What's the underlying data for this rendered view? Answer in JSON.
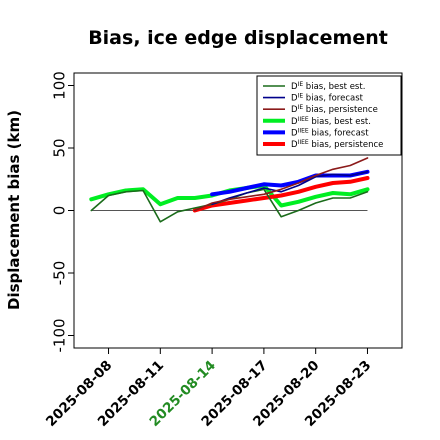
{
  "chart_data": {
    "type": "line",
    "title": "Bias, ice edge displacement",
    "ylabel": "Displacement bias (km)",
    "xlabel": "",
    "ylim": [
      -110,
      110
    ],
    "yticks": [
      -100,
      -50,
      0,
      50,
      100
    ],
    "xlim": [
      "2025-08-06",
      "2025-08-25"
    ],
    "xticks": [
      "2025-08-08",
      "2025-08-11",
      "2025-08-14",
      "2025-08-17",
      "2025-08-20",
      "2025-08-23"
    ],
    "highlight_tick": "2025-08-14",
    "highlight_color": "#228b22",
    "reference_line": 0,
    "grid": false,
    "legend_position": "top-right",
    "series": [
      {
        "name": "D^IE bias, best est.",
        "color": "#1a6b1a",
        "style": "thin",
        "x": [
          "2025-08-07",
          "2025-08-08",
          "2025-08-09",
          "2025-08-10",
          "2025-08-11",
          "2025-08-12",
          "2025-08-13",
          "2025-08-14",
          "2025-08-15",
          "2025-08-16",
          "2025-08-17",
          "2025-08-18",
          "2025-08-19",
          "2025-08-20",
          "2025-08-21",
          "2025-08-22",
          "2025-08-23"
        ],
        "y": [
          0,
          12,
          15,
          16,
          -9,
          -1,
          2,
          5,
          9,
          14,
          17,
          -5,
          0,
          6,
          10,
          10,
          15
        ]
      },
      {
        "name": "D^IE bias, forecast",
        "color": "#00008b",
        "style": "thin",
        "x": [
          "2025-08-14",
          "2025-08-15",
          "2025-08-16",
          "2025-08-17",
          "2025-08-18",
          "2025-08-19",
          "2025-08-20",
          "2025-08-21",
          "2025-08-22",
          "2025-08-23"
        ],
        "y": [
          5,
          10,
          14,
          18,
          15,
          20,
          27,
          29,
          28,
          31
        ]
      },
      {
        "name": "D^IE bias, persistence",
        "color": "#8b1a1a",
        "style": "thin",
        "x": [
          "2025-08-13",
          "2025-08-14",
          "2025-08-15",
          "2025-08-16",
          "2025-08-17",
          "2025-08-18",
          "2025-08-19",
          "2025-08-20",
          "2025-08-21",
          "2025-08-22",
          "2025-08-23"
        ],
        "y": [
          0,
          6,
          9,
          11,
          13,
          17,
          22,
          28,
          33,
          36,
          42
        ]
      },
      {
        "name": "D^IIEE bias, best est.",
        "color": "#00ee22",
        "style": "thick",
        "x": [
          "2025-08-07",
          "2025-08-08",
          "2025-08-09",
          "2025-08-10",
          "2025-08-11",
          "2025-08-12",
          "2025-08-13",
          "2025-08-14",
          "2025-08-15",
          "2025-08-16",
          "2025-08-17",
          "2025-08-18",
          "2025-08-19",
          "2025-08-20",
          "2025-08-21",
          "2025-08-22",
          "2025-08-23"
        ],
        "y": [
          9,
          13,
          16,
          17,
          5,
          10,
          10,
          12,
          16,
          18,
          20,
          4,
          7,
          11,
          14,
          13,
          17
        ]
      },
      {
        "name": "D^IIEE bias, forecast",
        "color": "#0000ff",
        "style": "thick",
        "x": [
          "2025-08-14",
          "2025-08-15",
          "2025-08-16",
          "2025-08-17",
          "2025-08-18",
          "2025-08-19",
          "2025-08-20",
          "2025-08-21",
          "2025-08-22",
          "2025-08-23"
        ],
        "y": [
          13,
          15,
          18,
          21,
          20,
          23,
          28,
          28,
          28,
          31
        ]
      },
      {
        "name": "D^IIEE bias, persistence",
        "color": "#ff0000",
        "style": "thick",
        "x": [
          "2025-08-13",
          "2025-08-14",
          "2025-08-15",
          "2025-08-16",
          "2025-08-17",
          "2025-08-18",
          "2025-08-19",
          "2025-08-20",
          "2025-08-21",
          "2025-08-22",
          "2025-08-23"
        ],
        "y": [
          0,
          4,
          6,
          8,
          10,
          12,
          15,
          19,
          22,
          23,
          26
        ]
      }
    ]
  },
  "legend": {
    "items": [
      {
        "prefix": "D",
        "sup": "IE",
        "suffix": " bias, best est."
      },
      {
        "prefix": "D",
        "sup": "IE",
        "suffix": " bias, forecast"
      },
      {
        "prefix": "D",
        "sup": "IE",
        "suffix": " bias, persistence"
      },
      {
        "prefix": "D",
        "sup": "IIEE",
        "suffix": " bias, best est."
      },
      {
        "prefix": "D",
        "sup": "IIEE",
        "suffix": " bias, forecast"
      },
      {
        "prefix": "D",
        "sup": "IIEE",
        "suffix": " bias, persistence"
      }
    ]
  }
}
